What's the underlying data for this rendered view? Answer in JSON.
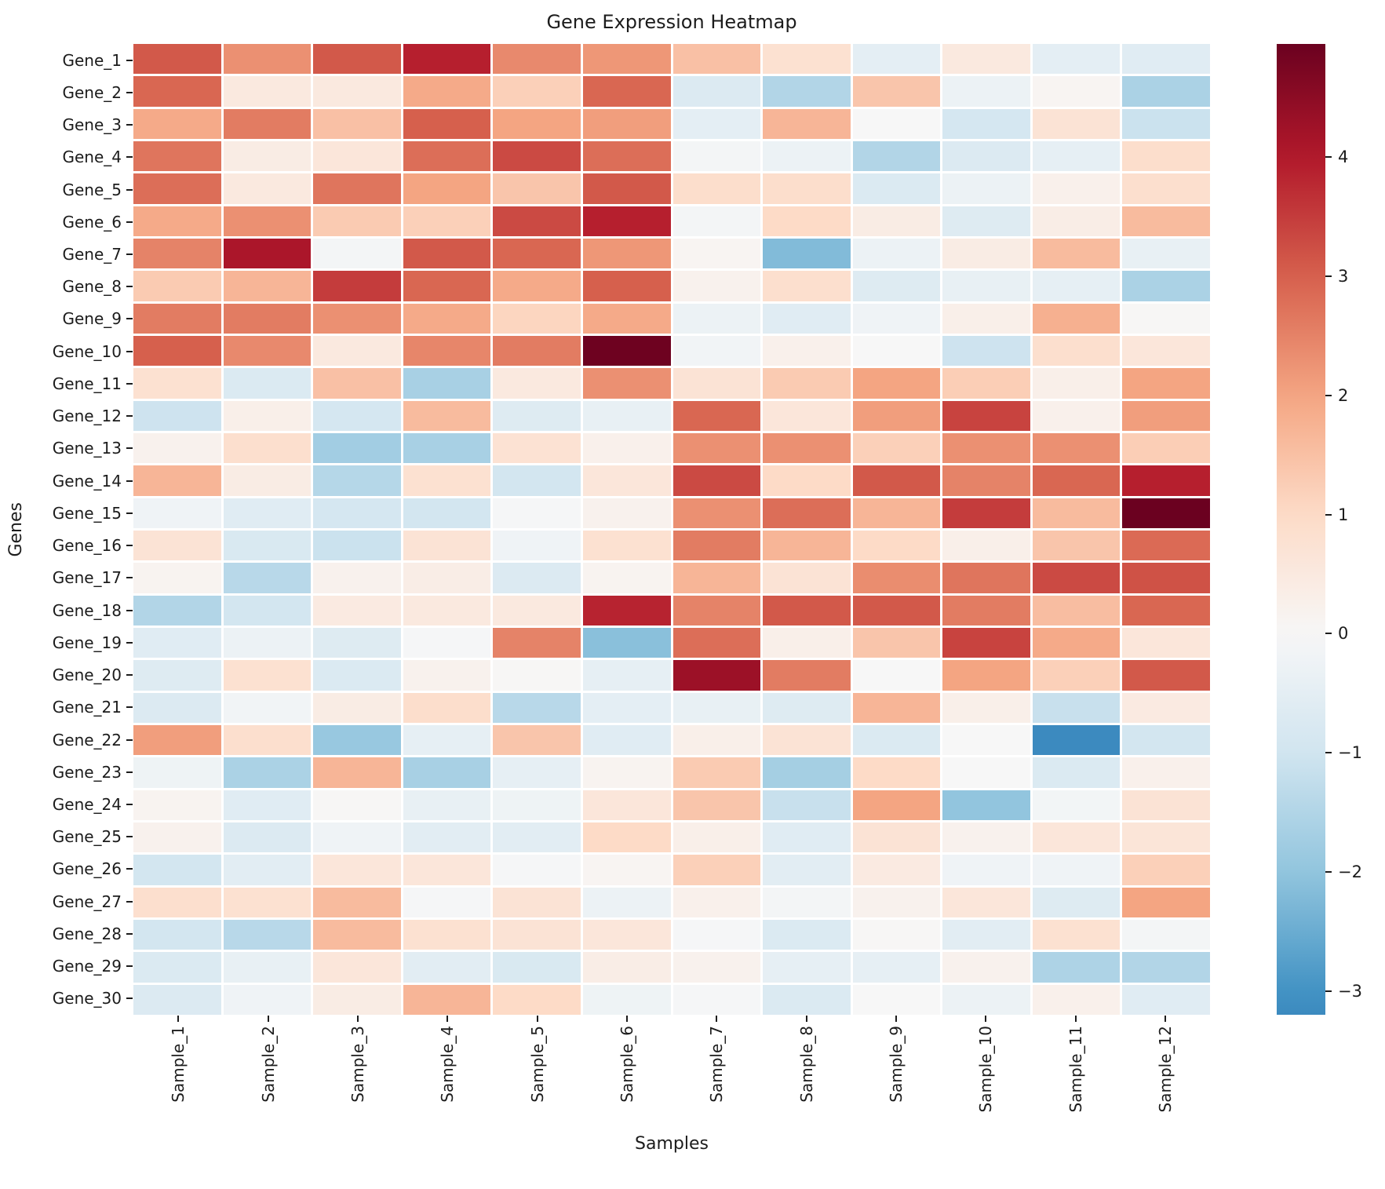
{
  "title": "Gene Expression Heatmap",
  "xlabel": "Samples",
  "ylabel": "Genes",
  "colors": {
    "background": "#ffffff",
    "grid_line": "#ffffff",
    "text": "#1c1c1c"
  },
  "chart_data": {
    "type": "heatmap",
    "title": "Gene Expression Heatmap",
    "xlabel": "Samples",
    "ylabel": "Genes",
    "rows": [
      "Gene_1",
      "Gene_2",
      "Gene_3",
      "Gene_4",
      "Gene_5",
      "Gene_6",
      "Gene_7",
      "Gene_8",
      "Gene_9",
      "Gene_10",
      "Gene_11",
      "Gene_12",
      "Gene_13",
      "Gene_14",
      "Gene_15",
      "Gene_16",
      "Gene_17",
      "Gene_18",
      "Gene_19",
      "Gene_20",
      "Gene_21",
      "Gene_22",
      "Gene_23",
      "Gene_24",
      "Gene_25",
      "Gene_26",
      "Gene_27",
      "Gene_28",
      "Gene_29",
      "Gene_30"
    ],
    "columns": [
      "Sample_1",
      "Sample_2",
      "Sample_3",
      "Sample_4",
      "Sample_5",
      "Sample_6",
      "Sample_7",
      "Sample_8",
      "Sample_9",
      "Sample_10",
      "Sample_11",
      "Sample_12"
    ],
    "values": [
      [
        3.1,
        2.3,
        3.1,
        3.9,
        2.4,
        2.2,
        1.5,
        0.8,
        -0.5,
        0.5,
        -0.5,
        -0.6
      ],
      [
        2.9,
        0.5,
        0.5,
        1.9,
        1.2,
        2.9,
        -0.7,
        -1.5,
        1.4,
        -0.3,
        0.1,
        -1.6
      ],
      [
        1.9,
        2.6,
        1.5,
        3.0,
        2.0,
        2.1,
        -0.5,
        1.7,
        0.0,
        -0.9,
        0.7,
        -1.1
      ],
      [
        2.7,
        0.4,
        0.6,
        2.8,
        3.3,
        2.8,
        -0.1,
        -0.3,
        -1.5,
        -0.7,
        -0.45,
        0.9
      ],
      [
        2.8,
        0.5,
        2.7,
        2.0,
        1.4,
        3.1,
        0.9,
        0.9,
        -0.75,
        -0.3,
        0.25,
        0.85
      ],
      [
        1.9,
        2.3,
        1.3,
        1.2,
        3.3,
        3.9,
        -0.1,
        1.0,
        0.4,
        -0.65,
        0.35,
        1.6
      ],
      [
        2.5,
        4.1,
        -0.1,
        3.1,
        2.9,
        2.2,
        0.1,
        -2.2,
        -0.3,
        0.4,
        1.6,
        -0.4
      ],
      [
        1.3,
        1.7,
        3.5,
        2.9,
        1.9,
        3.0,
        0.2,
        0.85,
        -0.65,
        -0.4,
        -0.45,
        -1.6
      ],
      [
        2.6,
        2.6,
        2.3,
        1.9,
        1.1,
        1.9,
        -0.3,
        -0.6,
        -0.2,
        0.3,
        1.8,
        0.05
      ],
      [
        3.0,
        2.4,
        0.5,
        2.45,
        2.6,
        4.9,
        -0.15,
        0.25,
        0.0,
        -1.05,
        0.85,
        0.6
      ],
      [
        0.8,
        -0.75,
        1.5,
        -1.65,
        0.5,
        2.3,
        0.7,
        1.3,
        2.0,
        1.25,
        0.3,
        2.0
      ],
      [
        -1.05,
        0.3,
        -0.9,
        1.6,
        -0.65,
        -0.4,
        2.9,
        0.6,
        2.1,
        3.4,
        0.25,
        2.1
      ],
      [
        0.2,
        0.85,
        -1.75,
        -1.65,
        0.75,
        0.25,
        2.3,
        2.3,
        1.2,
        2.3,
        2.3,
        1.25
      ],
      [
        1.7,
        0.4,
        -1.45,
        0.8,
        -0.95,
        0.6,
        3.3,
        1.0,
        3.1,
        2.5,
        2.9,
        3.9
      ],
      [
        -0.2,
        -0.6,
        -0.9,
        -0.95,
        -0.05,
        0.2,
        2.3,
        2.8,
        1.7,
        3.5,
        1.6,
        4.95
      ],
      [
        0.7,
        -0.8,
        -1.1,
        0.7,
        -0.2,
        0.8,
        2.6,
        1.7,
        1.0,
        0.3,
        1.4,
        2.85
      ],
      [
        0.15,
        -1.4,
        0.2,
        0.35,
        -0.7,
        0.15,
        1.7,
        0.7,
        2.35,
        2.7,
        3.3,
        3.2
      ],
      [
        -1.5,
        -0.95,
        0.45,
        0.5,
        0.5,
        3.85,
        2.5,
        3.1,
        3.1,
        2.6,
        1.55,
        2.9
      ],
      [
        -0.6,
        -0.3,
        -0.65,
        -0.05,
        2.5,
        -2.1,
        2.8,
        0.3,
        1.4,
        3.4,
        1.9,
        0.6
      ],
      [
        -0.65,
        0.8,
        -0.75,
        0.2,
        0.05,
        -0.45,
        4.3,
        2.6,
        0.0,
        2.0,
        1.2,
        3.1
      ],
      [
        -0.7,
        -0.15,
        0.4,
        0.9,
        -1.4,
        -0.5,
        -0.4,
        -0.65,
        1.7,
        0.3,
        -1.15,
        0.45
      ],
      [
        2.1,
        0.85,
        -1.9,
        -0.45,
        1.4,
        -0.6,
        0.3,
        0.7,
        -0.75,
        0.0,
        -3.2,
        -0.95
      ],
      [
        -0.25,
        -1.6,
        1.7,
        -1.65,
        -0.45,
        0.15,
        1.3,
        -1.7,
        1.0,
        0.0,
        -0.75,
        0.25
      ],
      [
        0.15,
        -0.6,
        0.05,
        -0.4,
        -0.25,
        0.6,
        1.4,
        -1.15,
        2.0,
        -2.0,
        -0.12,
        0.7
      ],
      [
        0.2,
        -0.7,
        -0.2,
        -0.55,
        -0.55,
        1.0,
        0.3,
        -0.6,
        0.7,
        0.2,
        0.6,
        0.65
      ],
      [
        -0.95,
        -0.55,
        0.6,
        0.6,
        -0.05,
        0.1,
        1.2,
        -0.55,
        0.45,
        -0.2,
        -0.2,
        1.2
      ],
      [
        0.85,
        0.8,
        1.6,
        -0.05,
        0.7,
        -0.3,
        0.25,
        -0.1,
        0.2,
        0.6,
        -0.65,
        2.0
      ],
      [
        -0.95,
        -1.4,
        1.6,
        0.8,
        0.7,
        0.6,
        -0.05,
        -0.75,
        0.05,
        -0.55,
        0.8,
        -0.1
      ],
      [
        -0.75,
        -0.4,
        0.6,
        -0.55,
        -0.8,
        0.35,
        0.2,
        -0.45,
        -0.45,
        0.2,
        -1.55,
        -1.5
      ],
      [
        -0.7,
        -0.2,
        0.4,
        1.7,
        1.0,
        -0.25,
        -0.05,
        -0.75,
        0.0,
        -0.3,
        0.25,
        -0.6
      ]
    ],
    "colormap": "RdBu_r",
    "colormap_stops": [
      "#053061",
      "#2166ac",
      "#4393c4",
      "#92c5de",
      "#d1e5f0",
      "#f7f7f7",
      "#fddbc7",
      "#f4a582",
      "#d6604d",
      "#b2182b",
      "#67001f"
    ],
    "center": 0,
    "vmin": -3.2,
    "vmax": 4.95,
    "color_scale_half_range": 5.0,
    "colorbar_tick_values": [
      4,
      3,
      2,
      1,
      0,
      -1,
      -2,
      -3
    ],
    "colorbar_tick_labels": [
      "4",
      "3",
      "2",
      "1",
      "0",
      "−1",
      "−2",
      "−3"
    ],
    "grid": false,
    "legend_position": "right-colorbar"
  }
}
